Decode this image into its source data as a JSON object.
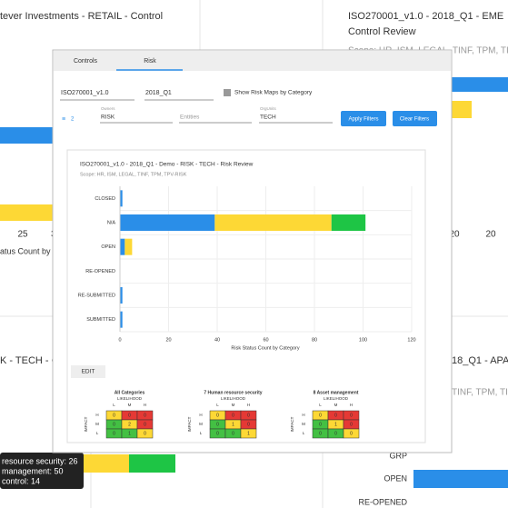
{
  "background": {
    "top_left": {
      "title": "tever Investments - RETAIL - Control",
      "ticks": [
        "25",
        "3"
      ],
      "axis_label": "atus Count by C"
    },
    "top_right": {
      "title": "ISO270001_v1.0 - 2018_Q1 - EME",
      "subtitle": "Control Review",
      "scope": "Scope: HR, ISM, LEGAL, TINF, TPM, TI",
      "ticks": [
        "20",
        "20"
      ]
    },
    "bottom_left": {
      "title": "K - TECH - C",
      "tooltip": [
        "resource security: 26",
        "management: 50",
        "control: 14"
      ]
    },
    "bottom_right": {
      "title": "18_Q1 - APA",
      "scope": "TINF, TPM, TI",
      "categories": [
        "GRP",
        "OPEN",
        "RE-OPENED"
      ]
    }
  },
  "dialog": {
    "tabs": [
      "Controls",
      "Risk"
    ],
    "filters": {
      "framework": "ISO270001_v1.0",
      "period": "2018_Q1",
      "checkbox": "Show Risk Maps by Category",
      "filter_count": "2",
      "owners_label": "Owners",
      "owners": "RISK",
      "entities": "Entities",
      "orgunits_label": "OrgUnits",
      "orgunits": "TECH",
      "apply": "Apply Filters",
      "clear": "Clear Filters"
    },
    "chart": {
      "type": "bar",
      "title": "ISO270001_v1.0 - 2018_Q1 - Demo - RISK - TECH - Risk Review",
      "subtitle": "Scope: HR, ISM, LEGAL, TINF, TPM, TPV-RISK",
      "categories": [
        "CLOSED",
        "N/A",
        "OPEN",
        "RE-OPENED",
        "RE-SUBMITTED",
        "SUBMITTED"
      ],
      "series": [
        {
          "color": "#2a8ee8",
          "values": [
            1,
            39,
            2,
            0,
            1,
            1
          ]
        },
        {
          "color": "#fdd835",
          "values": [
            0,
            48,
            3,
            0,
            0,
            0
          ]
        },
        {
          "color": "#1ec545",
          "values": [
            0,
            14,
            0,
            0,
            0,
            0
          ]
        }
      ],
      "xlim": [
        0,
        120
      ],
      "xticks": [
        0,
        20,
        40,
        60,
        80,
        100,
        120
      ],
      "x_label": "Risk Status Count by Category",
      "grid": true
    },
    "edit": "EDIT",
    "risk_maps": {
      "cell_colors": [
        [
          "#fdd835",
          "#e53935",
          "#e53935"
        ],
        [
          "#43c043",
          "#fdd835",
          "#e53935"
        ],
        [
          "#43c043",
          "#43c043",
          "#fdd835"
        ]
      ],
      "maps": [
        {
          "title": "All Categories",
          "x_label": "LIKELIHOOD",
          "y_label": "IMPACT",
          "rows": [
            "H",
            "M",
            "L"
          ],
          "cols": [
            "L",
            "M",
            "H"
          ],
          "values": [
            [
              0,
              0,
              0
            ],
            [
              0,
              2,
              0
            ],
            [
              0,
              1,
              0
            ]
          ]
        },
        {
          "title": "7 Human resource security",
          "x_label": "LIKELIHOOD",
          "y_label": "IMPACT",
          "rows": [
            "H",
            "M",
            "L"
          ],
          "cols": [
            "L",
            "M",
            "H"
          ],
          "values": [
            [
              0,
              0,
              0
            ],
            [
              0,
              1,
              0
            ],
            [
              0,
              0,
              1
            ]
          ]
        },
        {
          "title": "8 Asset management",
          "x_label": "LIKELIHOOD",
          "y_label": "IMPACT",
          "rows": [
            "H",
            "M",
            "L"
          ],
          "cols": [
            "L",
            "M",
            "H"
          ],
          "values": [
            [
              0,
              0,
              0
            ],
            [
              0,
              1,
              0
            ],
            [
              0,
              0,
              0
            ]
          ]
        }
      ]
    }
  }
}
